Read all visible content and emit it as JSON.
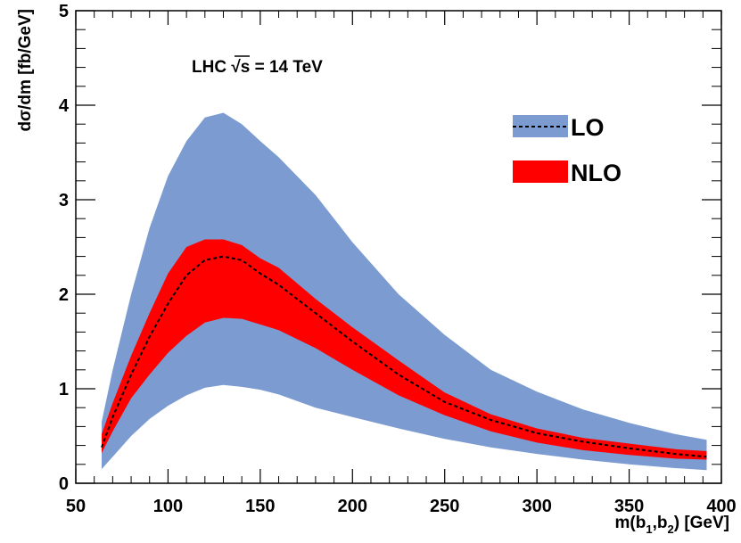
{
  "chart_data": {
    "type": "area",
    "xlabel": "m(b1,b2) [GeV]",
    "xlabel_main": "m(b",
    "xlabel_sub1": "1",
    "xlabel_mid": ",b",
    "xlabel_sub2": "2",
    "xlabel_end": ") [GeV]",
    "ylabel": "dσ/dm [fb/GeV]",
    "annotation_prefix": "LHC ",
    "annotation_sqrt": "√s",
    "annotation_suffix": " = 14 TeV",
    "xlim": [
      50,
      400
    ],
    "ylim": [
      0,
      5
    ],
    "x_ticks": [
      "50",
      "100",
      "150",
      "200",
      "250",
      "300",
      "350",
      "400"
    ],
    "y_ticks": [
      "0",
      "1",
      "2",
      "3",
      "4",
      "5"
    ],
    "legend_position": "top-right",
    "legend": [
      {
        "label": "LO",
        "color": "#7b9bd1",
        "line": "dashed"
      },
      {
        "label": "NLO",
        "color": "#ff0000"
      }
    ],
    "x": [
      64,
      70,
      80,
      90,
      100,
      110,
      120,
      130,
      140,
      150,
      160,
      180,
      200,
      225,
      250,
      275,
      300,
      325,
      350,
      375,
      392
    ],
    "series": [
      {
        "name": "LO",
        "color": "#7b9bd1",
        "lower": [
          0.15,
          0.28,
          0.5,
          0.68,
          0.82,
          0.93,
          1.01,
          1.04,
          1.02,
          0.99,
          0.94,
          0.8,
          0.7,
          0.58,
          0.47,
          0.38,
          0.31,
          0.25,
          0.2,
          0.16,
          0.14
        ],
        "upper": [
          0.65,
          1.2,
          2.0,
          2.7,
          3.25,
          3.62,
          3.87,
          3.92,
          3.8,
          3.62,
          3.45,
          3.05,
          2.55,
          2.0,
          1.57,
          1.2,
          0.97,
          0.78,
          0.64,
          0.52,
          0.46
        ]
      },
      {
        "name": "NLO",
        "color": "#ff0000",
        "lower": [
          0.32,
          0.55,
          0.9,
          1.15,
          1.38,
          1.56,
          1.7,
          1.75,
          1.74,
          1.68,
          1.62,
          1.43,
          1.2,
          0.93,
          0.72,
          0.55,
          0.43,
          0.35,
          0.3,
          0.26,
          0.25
        ],
        "upper": [
          0.52,
          0.85,
          1.35,
          1.8,
          2.22,
          2.5,
          2.58,
          2.58,
          2.52,
          2.38,
          2.28,
          1.95,
          1.65,
          1.3,
          0.96,
          0.73,
          0.58,
          0.48,
          0.42,
          0.36,
          0.34
        ],
        "central": [
          0.38,
          0.7,
          1.15,
          1.55,
          1.9,
          2.2,
          2.36,
          2.4,
          2.36,
          2.22,
          2.1,
          1.8,
          1.5,
          1.15,
          0.86,
          0.67,
          0.53,
          0.44,
          0.37,
          0.31,
          0.28
        ]
      }
    ]
  }
}
